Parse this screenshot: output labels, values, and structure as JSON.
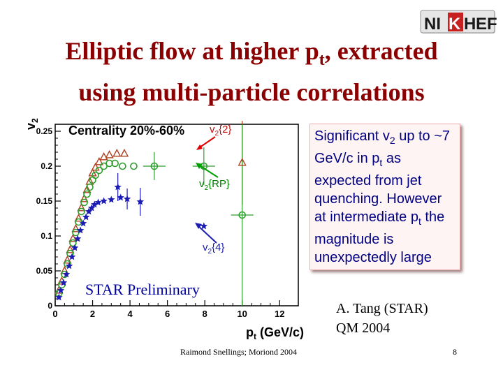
{
  "logo": {
    "text_pre": "NI",
    "text_k": "K",
    "text_h": "H",
    "text_post": "EF"
  },
  "title": {
    "line1_pre": "Elliptic flow at higher p",
    "line1_sub": "t",
    "line1_post": ", extracted",
    "line2": "using multi-particle correlations"
  },
  "note": {
    "p1": "Significant v",
    "s1": "2",
    "p2": " up to ~7 GeV/c in p",
    "s2": "t",
    "p3": " as expected from jet quenching. However at intermediate p",
    "s3": "t",
    "p4": " the magnitude is unexpectedly large"
  },
  "credit": {
    "line1": "A. Tang (STAR)",
    "line2": "QM 2004"
  },
  "footer": {
    "text": "Raimond Snellings; Moriond 2004",
    "page": "8"
  },
  "colors": {
    "title": "#8b0000",
    "note_text": "#000080",
    "star": "#1c1cb4",
    "circle": "#2e9e2e",
    "triangle": "#b04020",
    "arrow_red": "#e00000",
    "arrow_green": "#00a000",
    "arrow_blue": "#1c1cb4"
  },
  "chart_data": {
    "type": "scatter",
    "title": "Centrality 20%-60%",
    "xlabel_main": "p",
    "xlabel_sub": "t",
    "xlabel_unit": " (GeV/c)",
    "ylabel_main": "v",
    "ylabel_sub": "2",
    "xlim": [
      0,
      13
    ],
    "ylim": [
      0,
      0.26
    ],
    "xticks": [
      0,
      2,
      4,
      6,
      8,
      10,
      12
    ],
    "yticks": [
      0,
      0.05,
      0.1,
      0.15,
      0.2,
      0.25
    ],
    "ytick_labels": [
      "0",
      "0.05",
      "0.1",
      "0.15",
      "0.2",
      "0.25"
    ],
    "watermark": "STAR Preliminary",
    "annotations": {
      "v2_2": {
        "main": "v",
        "sub": "2",
        "rest": "{2}"
      },
      "v2_rp": {
        "main": "v",
        "sub": "2",
        "rest": "{RP}"
      },
      "v2_4": {
        "main": "v",
        "sub": "2",
        "rest": "{4}"
      }
    },
    "series": [
      {
        "name": "v2{4}",
        "marker": "star",
        "points": [
          [
            0.2,
            0.012
          ],
          [
            0.3,
            0.022
          ],
          [
            0.45,
            0.033
          ],
          [
            0.6,
            0.045
          ],
          [
            0.75,
            0.057
          ],
          [
            0.9,
            0.07
          ],
          [
            1.05,
            0.083
          ],
          [
            1.2,
            0.096
          ],
          [
            1.35,
            0.108
          ],
          [
            1.5,
            0.118
          ],
          [
            1.65,
            0.127
          ],
          [
            1.8,
            0.135
          ],
          [
            1.95,
            0.14
          ],
          [
            2.1,
            0.145
          ],
          [
            2.3,
            0.148
          ],
          [
            2.6,
            0.15
          ],
          [
            3.0,
            0.152
          ],
          [
            3.5,
            0.155
          ]
        ],
        "errs": [
          [
            3.5,
            0.02
          ]
        ],
        "extra": [
          {
            "x": 3.35,
            "y": 0.17,
            "err": 0.02
          },
          {
            "x": 3.85,
            "y": 0.153,
            "err": 0.015
          },
          {
            "x": 4.55,
            "y": 0.149,
            "err": 0.02
          },
          {
            "x": 7.95,
            "y": 0.114,
            "err": 0.0
          }
        ]
      },
      {
        "name": "v2{RP}",
        "marker": "circle",
        "points": [
          [
            0.2,
            0.018
          ],
          [
            0.35,
            0.03
          ],
          [
            0.5,
            0.045
          ],
          [
            0.65,
            0.06
          ],
          [
            0.8,
            0.075
          ],
          [
            0.95,
            0.09
          ],
          [
            1.1,
            0.105
          ],
          [
            1.25,
            0.12
          ],
          [
            1.4,
            0.135
          ],
          [
            1.55,
            0.148
          ],
          [
            1.7,
            0.16
          ],
          [
            1.85,
            0.17
          ],
          [
            2.0,
            0.18
          ],
          [
            2.15,
            0.187
          ],
          [
            2.35,
            0.194
          ],
          [
            2.6,
            0.2
          ],
          [
            2.9,
            0.204
          ],
          [
            3.2,
            0.204
          ],
          [
            3.6,
            0.2
          ],
          [
            4.2,
            0.2
          ],
          [
            5.3,
            0.2
          ],
          [
            7.95,
            0.2
          ],
          [
            10.0,
            0.13
          ]
        ],
        "extra": [
          {
            "x": 5.3,
            "y": 0.2,
            "err": 0.02
          },
          {
            "x": 7.95,
            "y": 0.2,
            "err": 0.027
          },
          {
            "x": 10.0,
            "y": 0.13,
            "err": 0.13
          }
        ]
      },
      {
        "name": "v2{2}",
        "marker": "triangle",
        "points": [
          [
            0.2,
            0.022
          ],
          [
            0.35,
            0.035
          ],
          [
            0.5,
            0.05
          ],
          [
            0.65,
            0.065
          ],
          [
            0.8,
            0.08
          ],
          [
            0.95,
            0.096
          ],
          [
            1.1,
            0.11
          ],
          [
            1.25,
            0.125
          ],
          [
            1.4,
            0.14
          ],
          [
            1.55,
            0.153
          ],
          [
            1.7,
            0.166
          ],
          [
            1.85,
            0.178
          ],
          [
            2.0,
            0.19
          ],
          [
            2.15,
            0.198
          ],
          [
            2.35,
            0.206
          ],
          [
            2.6,
            0.213
          ],
          [
            2.9,
            0.216
          ],
          [
            3.3,
            0.218
          ],
          [
            3.7,
            0.218
          ],
          [
            10.0,
            0.205
          ]
        ],
        "extra": [
          {
            "x": 10.0,
            "y": 0.205,
            "err": 0.06
          }
        ]
      }
    ]
  }
}
